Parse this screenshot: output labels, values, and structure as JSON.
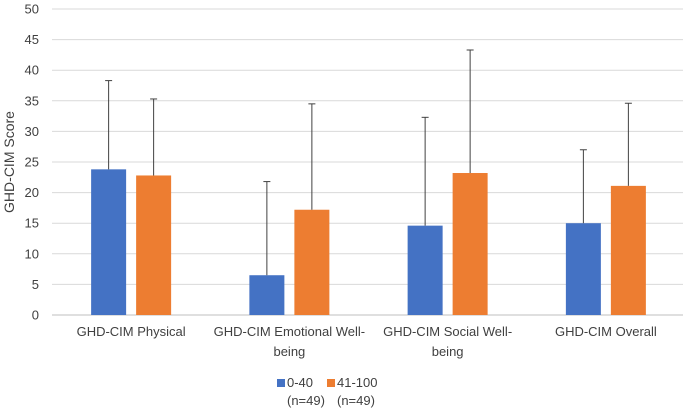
{
  "chart_data": {
    "type": "bar",
    "title": "",
    "xlabel": "",
    "ylabel": "GHD-CIM Score",
    "ylim": [
      0,
      50
    ],
    "yticks": [
      0,
      5,
      10,
      15,
      20,
      25,
      30,
      35,
      40,
      45,
      50
    ],
    "grid": true,
    "legend_position": "bottom",
    "categories": [
      [
        "GHD-CIM Physical"
      ],
      [
        "GHD-CIM Emotional Well-",
        "being"
      ],
      [
        "GHD-CIM Social Well-",
        "being"
      ],
      [
        "GHD-CIM Overall"
      ]
    ],
    "series": [
      {
        "name": [
          "0-40",
          "(n=49)"
        ],
        "color": "#4472C4",
        "values": [
          23.8,
          6.5,
          14.6,
          15.0
        ],
        "error_upper": [
          38.3,
          21.8,
          32.3,
          27.0
        ]
      },
      {
        "name": [
          "41-100",
          "(n=49)"
        ],
        "color": "#ED7D31",
        "values": [
          22.8,
          17.2,
          23.2,
          21.1
        ],
        "error_upper": [
          35.3,
          34.5,
          43.3,
          34.6
        ]
      }
    ],
    "error_bar_color": "#404040"
  }
}
